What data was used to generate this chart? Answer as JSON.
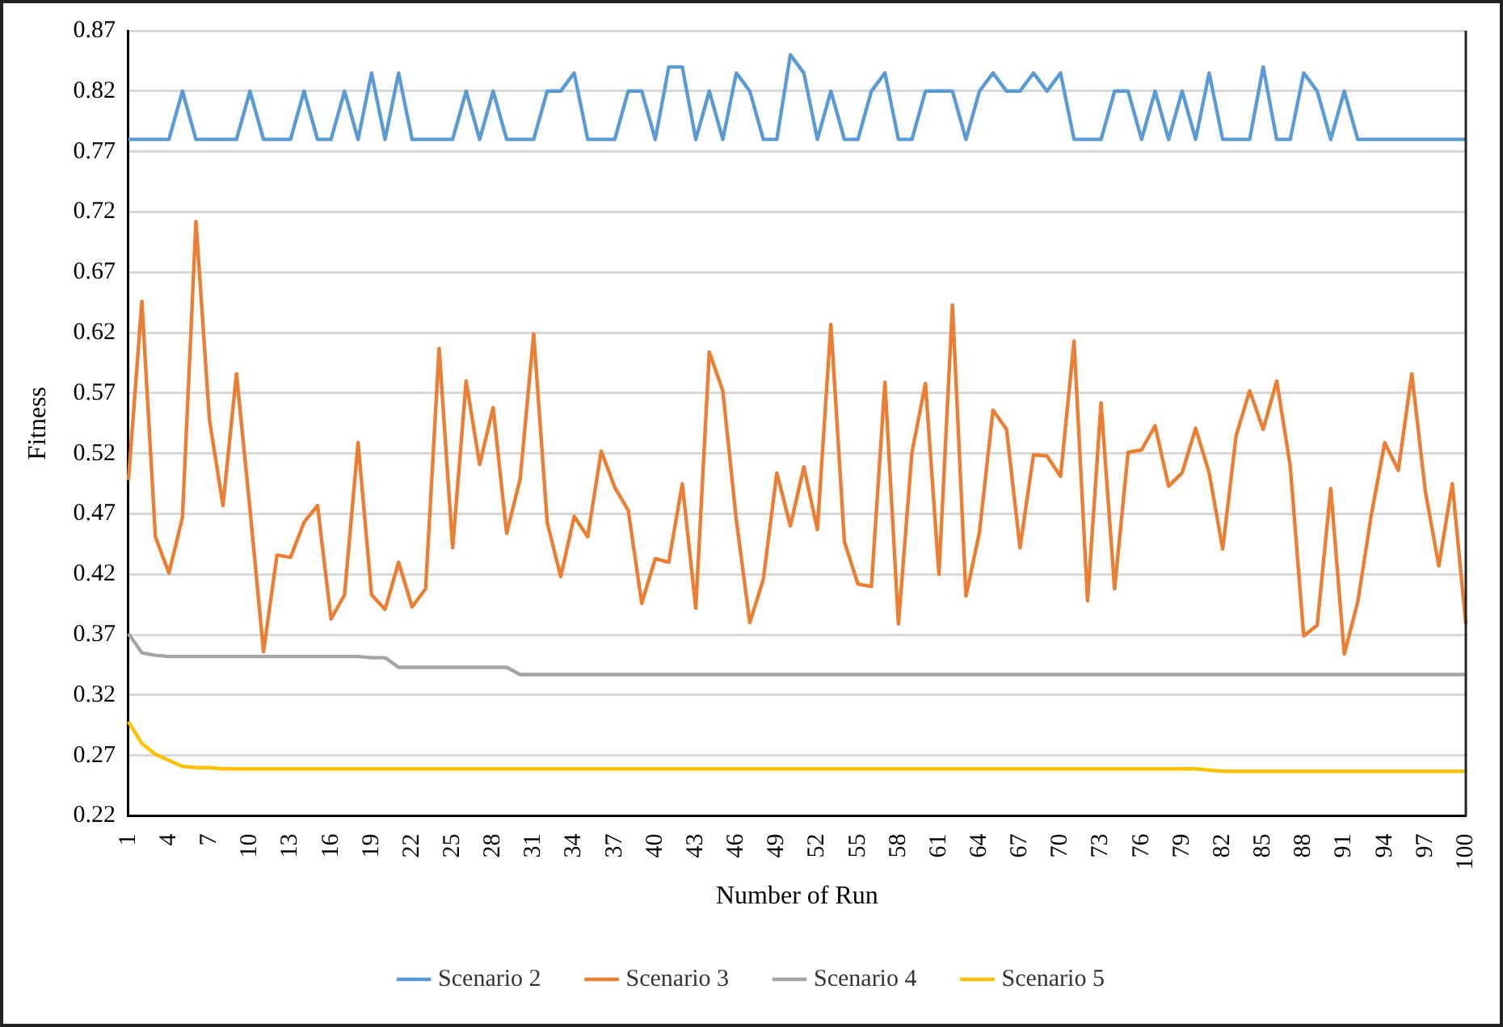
{
  "chart_data": {
    "type": "line",
    "xlabel": "Number of Run",
    "ylabel": "Fitness",
    "categories": [
      "1",
      null,
      null,
      "4",
      null,
      null,
      "7",
      null,
      null,
      "10",
      null,
      null,
      "13",
      null,
      null,
      "16",
      null,
      null,
      "19",
      null,
      null,
      "22",
      null,
      null,
      "25",
      null,
      null,
      "28",
      null,
      null,
      "31",
      null,
      null,
      "34",
      null,
      null,
      "37",
      null,
      null,
      "40",
      null,
      null,
      "43",
      null,
      null,
      "46",
      null,
      null,
      "49",
      null,
      null,
      "52",
      null,
      null,
      "55",
      null,
      null,
      "58",
      null,
      null,
      "61",
      null,
      null,
      "64",
      null,
      null,
      "67",
      null,
      null,
      "70",
      null,
      null,
      "73",
      null,
      null,
      "76",
      null,
      null,
      "79",
      null,
      null,
      "82",
      null,
      null,
      "85",
      null,
      null,
      "88",
      null,
      null,
      "91",
      null,
      null,
      "94",
      null,
      null,
      "97",
      null,
      null,
      "100"
    ],
    "ylim": [
      0.22,
      0.87
    ],
    "yticks": [
      0.22,
      0.27,
      0.32,
      0.37,
      0.42,
      0.47,
      0.52,
      0.57,
      0.62,
      0.67,
      0.72,
      0.77,
      0.82,
      0.87
    ],
    "grid": "y",
    "legend": "bottom",
    "marker": "none",
    "line_style": "solid",
    "series": [
      {
        "name": "Scenario 2",
        "color": "#5b9bd5",
        "values": [
          0.78,
          0.78,
          0.78,
          0.78,
          0.82,
          0.78,
          0.78,
          0.78,
          0.78,
          0.82,
          0.78,
          0.78,
          0.78,
          0.82,
          0.78,
          0.78,
          0.82,
          0.78,
          0.835,
          0.78,
          0.835,
          0.78,
          0.78,
          0.78,
          0.78,
          0.82,
          0.78,
          0.82,
          0.78,
          0.78,
          0.78,
          0.82,
          0.82,
          0.835,
          0.78,
          0.78,
          0.78,
          0.82,
          0.82,
          0.78,
          0.84,
          0.84,
          0.78,
          0.82,
          0.78,
          0.835,
          0.82,
          0.78,
          0.78,
          0.85,
          0.835,
          0.78,
          0.82,
          0.78,
          0.78,
          0.82,
          0.835,
          0.78,
          0.78,
          0.82,
          0.82,
          0.82,
          0.78,
          0.82,
          0.835,
          0.82,
          0.82,
          0.835,
          0.82,
          0.835,
          0.78,
          0.78,
          0.78,
          0.82,
          0.82,
          0.78,
          0.82,
          0.78,
          0.82,
          0.78,
          0.835,
          0.78,
          0.78,
          0.78,
          0.84,
          0.78,
          0.78,
          0.835,
          0.82,
          0.78,
          0.82,
          0.78,
          0.78,
          0.78,
          0.78,
          0.78,
          0.78,
          0.78,
          0.78,
          0.78
        ]
      },
      {
        "name": "Scenario 3",
        "color": "#ed7d31",
        "values": [
          0.498,
          0.646,
          0.451,
          0.421,
          0.467,
          0.712,
          0.548,
          0.477,
          0.586,
          0.474,
          0.356,
          0.436,
          0.434,
          0.463,
          0.477,
          0.383,
          0.403,
          0.529,
          0.403,
          0.391,
          0.43,
          0.393,
          0.408,
          0.607,
          0.442,
          0.58,
          0.511,
          0.558,
          0.454,
          0.499,
          0.619,
          0.463,
          0.418,
          0.468,
          0.451,
          0.522,
          0.492,
          0.473,
          0.396,
          0.433,
          0.43,
          0.495,
          0.392,
          0.604,
          0.572,
          0.465,
          0.38,
          0.416,
          0.504,
          0.46,
          0.509,
          0.457,
          0.627,
          0.447,
          0.412,
          0.41,
          0.579,
          0.379,
          0.521,
          0.578,
          0.42,
          0.643,
          0.402,
          0.455,
          0.556,
          0.54,
          0.442,
          0.519,
          0.518,
          0.501,
          0.613,
          0.398,
          0.562,
          0.408,
          0.521,
          0.523,
          0.543,
          0.493,
          0.504,
          0.541,
          0.504,
          0.441,
          0.535,
          0.572,
          0.54,
          0.58,
          0.51,
          0.369,
          0.378,
          0.491,
          0.354,
          0.397,
          0.469,
          0.529,
          0.506,
          0.586,
          0.489,
          0.427,
          0.495,
          0.379
        ]
      },
      {
        "name": "Scenario 4",
        "color": "#a5a5a5",
        "values": [
          0.371,
          0.355,
          0.353,
          0.352,
          0.352,
          0.352,
          0.352,
          0.352,
          0.352,
          0.352,
          0.352,
          0.352,
          0.352,
          0.352,
          0.352,
          0.352,
          0.352,
          0.352,
          0.351,
          0.351,
          0.343,
          0.343,
          0.343,
          0.343,
          0.343,
          0.343,
          0.343,
          0.343,
          0.343,
          0.337,
          0.337,
          0.337,
          0.337,
          0.337,
          0.337,
          0.337,
          0.337,
          0.337,
          0.337,
          0.337,
          0.337,
          0.337,
          0.337,
          0.337,
          0.337,
          0.337,
          0.337,
          0.337,
          0.337,
          0.337,
          0.337,
          0.337,
          0.337,
          0.337,
          0.337,
          0.337,
          0.337,
          0.337,
          0.337,
          0.337,
          0.337,
          0.337,
          0.337,
          0.337,
          0.337,
          0.337,
          0.337,
          0.337,
          0.337,
          0.337,
          0.337,
          0.337,
          0.337,
          0.337,
          0.337,
          0.337,
          0.337,
          0.337,
          0.337,
          0.337,
          0.337,
          0.337,
          0.337,
          0.337,
          0.337,
          0.337,
          0.337,
          0.337,
          0.337,
          0.337,
          0.337,
          0.337,
          0.337,
          0.337,
          0.337,
          0.337,
          0.337,
          0.337,
          0.337,
          0.337
        ]
      },
      {
        "name": "Scenario 5",
        "color": "#ffc000",
        "values": [
          0.298,
          0.28,
          0.271,
          0.266,
          0.261,
          0.26,
          0.26,
          0.259,
          0.259,
          0.259,
          0.259,
          0.259,
          0.259,
          0.259,
          0.259,
          0.259,
          0.259,
          0.259,
          0.259,
          0.259,
          0.259,
          0.259,
          0.259,
          0.259,
          0.259,
          0.259,
          0.259,
          0.259,
          0.259,
          0.259,
          0.259,
          0.259,
          0.259,
          0.259,
          0.259,
          0.259,
          0.259,
          0.259,
          0.259,
          0.259,
          0.259,
          0.259,
          0.259,
          0.259,
          0.259,
          0.259,
          0.259,
          0.259,
          0.259,
          0.259,
          0.259,
          0.259,
          0.259,
          0.259,
          0.259,
          0.259,
          0.259,
          0.259,
          0.259,
          0.259,
          0.259,
          0.259,
          0.259,
          0.259,
          0.259,
          0.259,
          0.259,
          0.259,
          0.259,
          0.259,
          0.259,
          0.259,
          0.259,
          0.259,
          0.259,
          0.259,
          0.259,
          0.259,
          0.259,
          0.259,
          0.258,
          0.257,
          0.257,
          0.257,
          0.257,
          0.257,
          0.257,
          0.257,
          0.257,
          0.257,
          0.257,
          0.257,
          0.257,
          0.257,
          0.257,
          0.257,
          0.257,
          0.257,
          0.257,
          0.257
        ]
      }
    ]
  }
}
